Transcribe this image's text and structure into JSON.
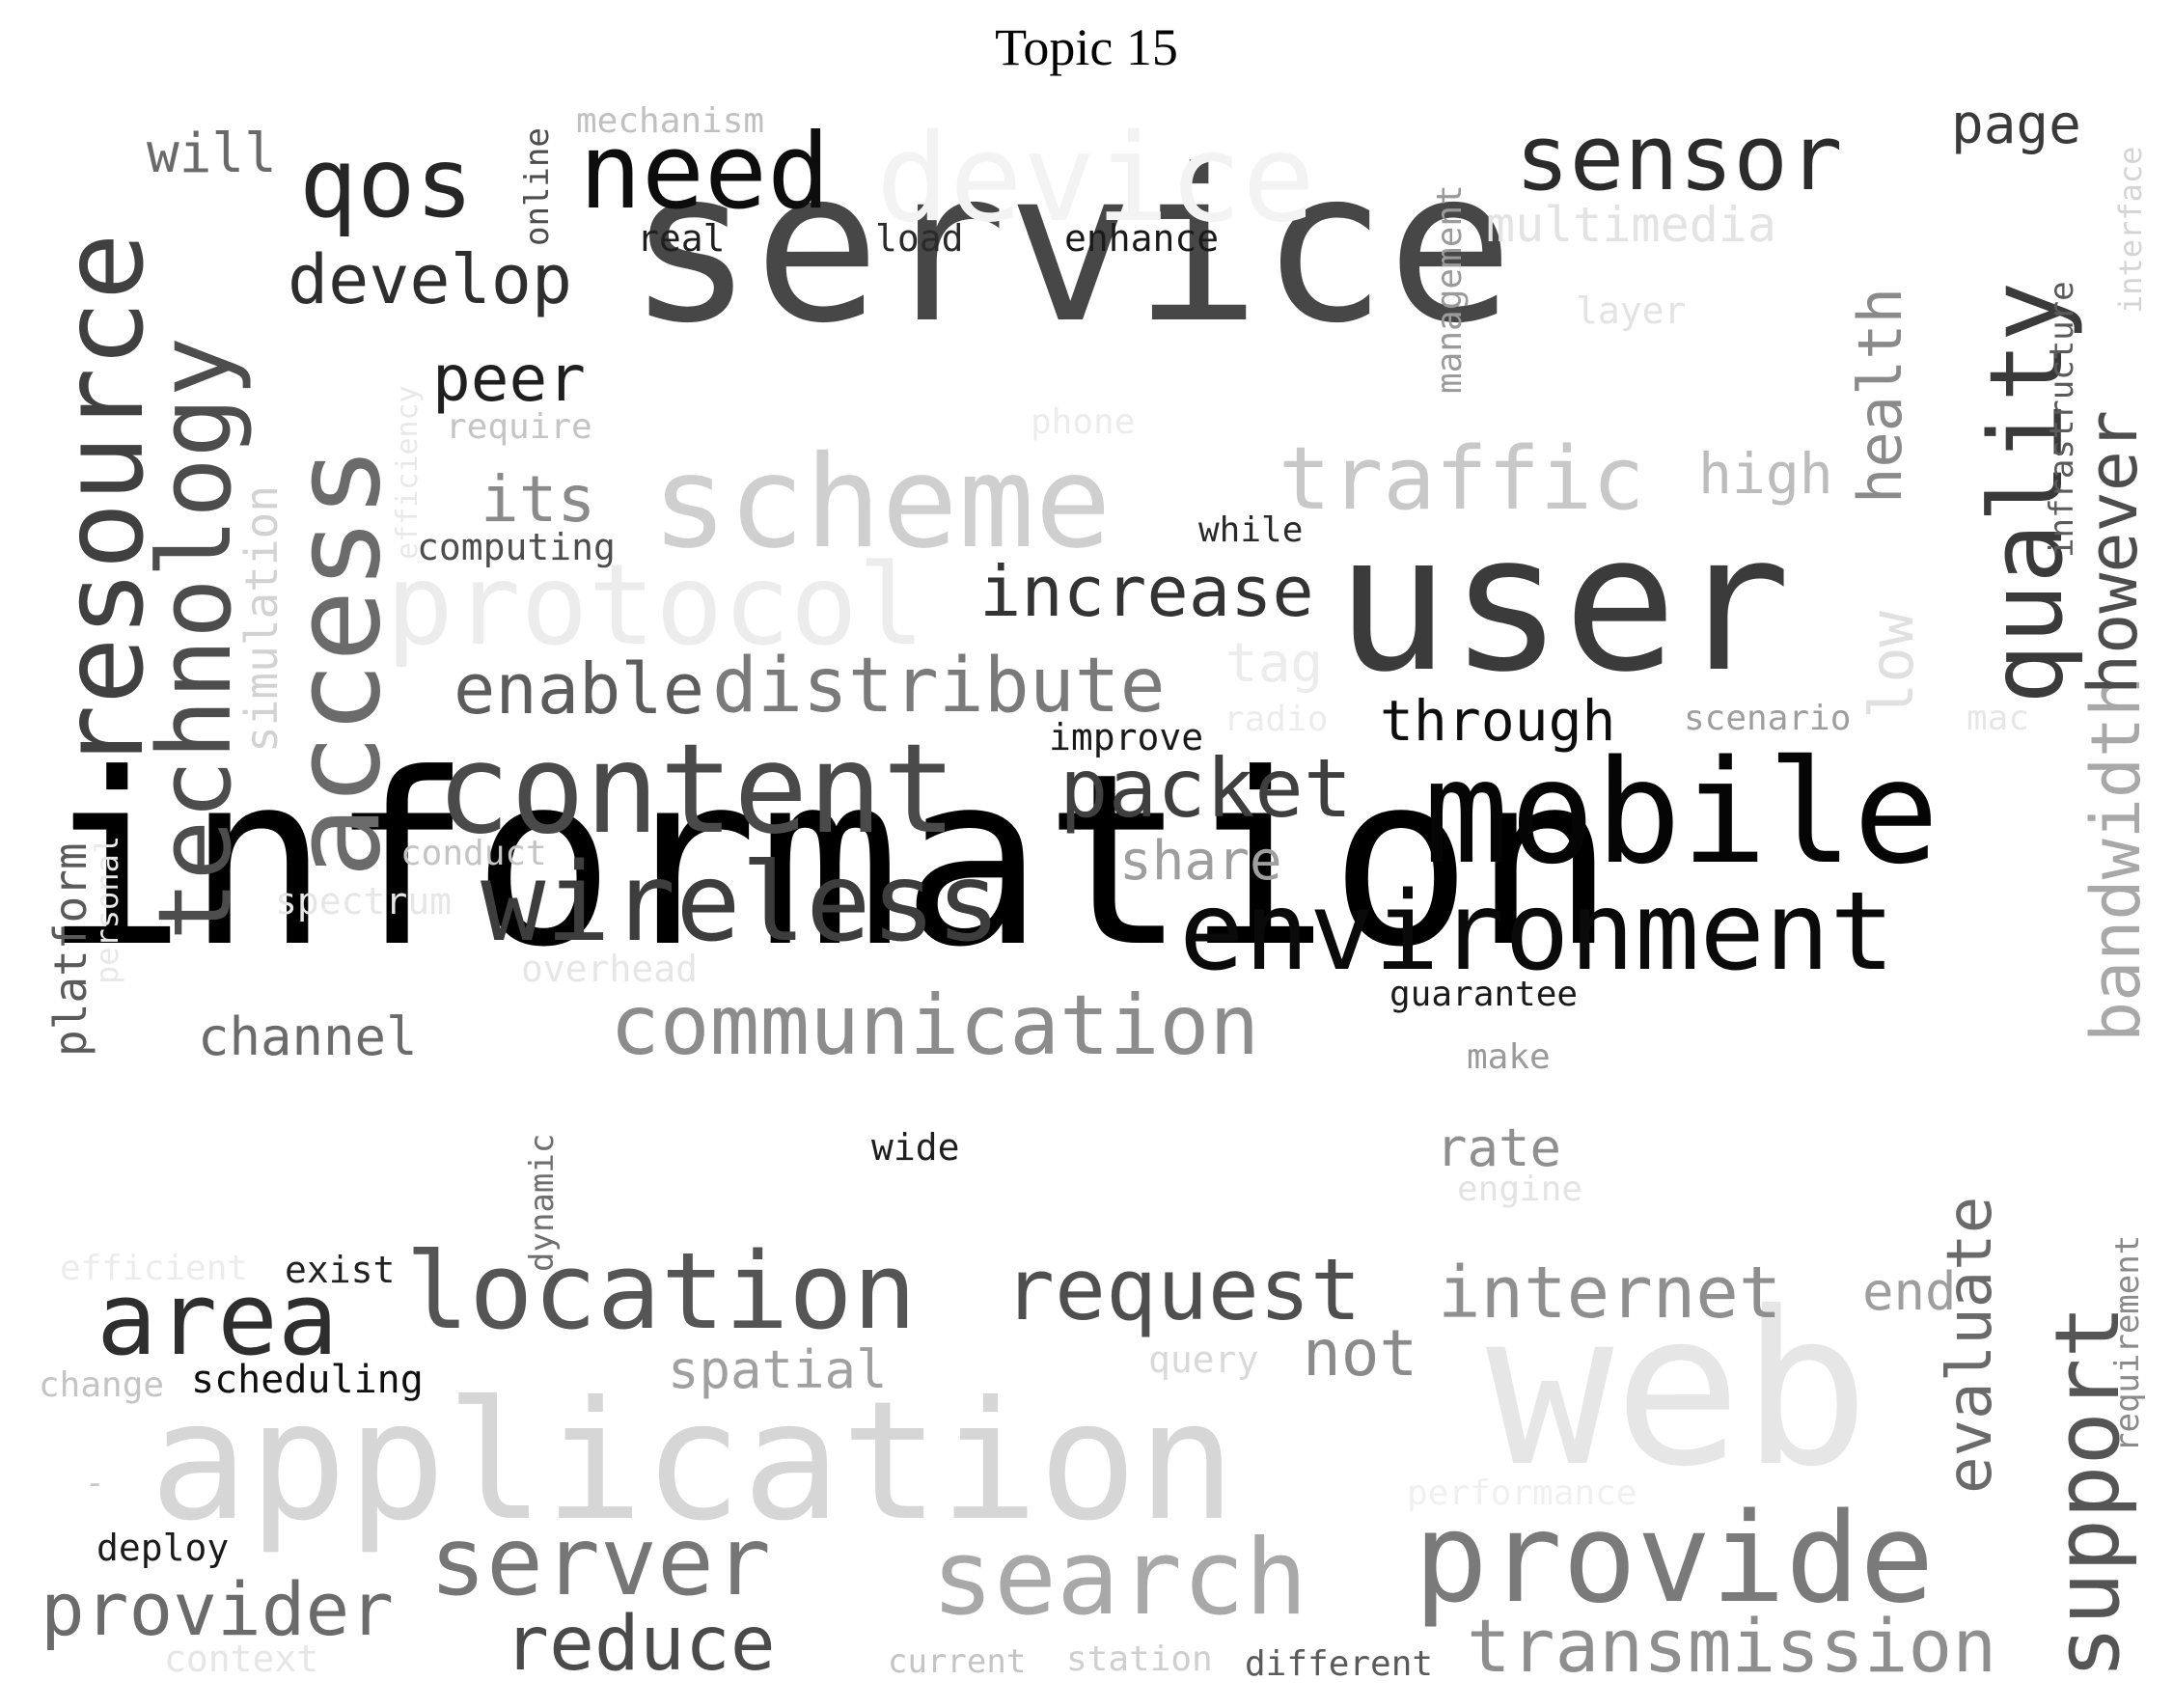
{
  "title": "Topic 15",
  "words": [
    {
      "text": "information",
      "color": "#000000"
    },
    {
      "text": "service",
      "color": "#474747"
    },
    {
      "text": "user",
      "color": "#3b3b3b"
    },
    {
      "text": "application",
      "color": "#d6d6d6"
    },
    {
      "text": "web",
      "color": "#e6e6e6"
    },
    {
      "text": "mobile",
      "color": "#050505"
    },
    {
      "text": "content",
      "color": "#4a4a4a"
    },
    {
      "text": "access",
      "color": "#6b6b6b"
    },
    {
      "text": "resource",
      "color": "#404040"
    },
    {
      "text": "technology",
      "color": "#4d4d4d"
    },
    {
      "text": "scheme",
      "color": "#cfcfcf"
    },
    {
      "text": "protocol",
      "color": "#ececec"
    },
    {
      "text": "device",
      "color": "#f3f3f3"
    },
    {
      "text": "environment",
      "color": "#0a0a0a"
    },
    {
      "text": "wireless",
      "color": "#3d3d3d"
    },
    {
      "text": "location",
      "color": "#555555"
    },
    {
      "text": "area",
      "color": "#2e2e2e"
    },
    {
      "text": "search",
      "color": "#a8a8a8"
    },
    {
      "text": "provide",
      "color": "#7a7a7a"
    },
    {
      "text": "need",
      "color": "#0d0d0d"
    },
    {
      "text": "qos",
      "color": "#262626"
    },
    {
      "text": "sensor",
      "color": "#2b2b2b"
    },
    {
      "text": "quality",
      "color": "#3a3a3a"
    },
    {
      "text": "communication",
      "color": "#8c8c8c"
    },
    {
      "text": "packet",
      "color": "#3f3f3f"
    },
    {
      "text": "distribute",
      "color": "#7a7a7a"
    },
    {
      "text": "enable",
      "color": "#5c5c5c"
    },
    {
      "text": "request",
      "color": "#4f4f4f"
    },
    {
      "text": "server",
      "color": "#767676"
    },
    {
      "text": "provider",
      "color": "#6b6b6b"
    },
    {
      "text": "transmission",
      "color": "#8e8e8e"
    },
    {
      "text": "support",
      "color": "#555555"
    },
    {
      "text": "traffic",
      "color": "#c8c8c8"
    },
    {
      "text": "increase",
      "color": "#333333"
    },
    {
      "text": "bandwidth",
      "color": "#a8a8a8"
    },
    {
      "text": "however",
      "color": "#4d4d4d"
    },
    {
      "text": "internet",
      "color": "#8f8f8f"
    },
    {
      "text": "reduce",
      "color": "#4a4a4a"
    },
    {
      "text": "develop",
      "color": "#2e2e2e"
    },
    {
      "text": "evaluate",
      "color": "#6a6a6a"
    },
    {
      "text": "health",
      "color": "#8a8a8a"
    },
    {
      "text": "peer",
      "color": "#1f1f1f"
    },
    {
      "text": "its",
      "color": "#8a8a8a"
    },
    {
      "text": "multimedia",
      "color": "#e3e3e3"
    },
    {
      "text": "page",
      "color": "#3a3a3a"
    },
    {
      "text": "will",
      "color": "#6a6a6a"
    },
    {
      "text": "through",
      "color": "#0d0d0d"
    },
    {
      "text": "channel",
      "color": "#6b6b6b"
    },
    {
      "text": "spatial",
      "color": "#a0a0a0"
    },
    {
      "text": "not",
      "color": "#8a8a8a"
    },
    {
      "text": "high",
      "color": "#bcbcbc"
    },
    {
      "text": "share",
      "color": "#9e9e9e"
    },
    {
      "text": "rate",
      "color": "#8f8f8f"
    },
    {
      "text": "low",
      "color": "#e0e0e0"
    },
    {
      "text": "end",
      "color": "#9e9e9e"
    },
    {
      "text": "platform",
      "color": "#5a5a5a"
    },
    {
      "text": "simulation",
      "color": "#d2d2d2"
    },
    {
      "text": "management",
      "color": "#9a9a9a"
    },
    {
      "text": "infrastructure",
      "color": "#5a5a5a"
    },
    {
      "text": "interface",
      "color": "#d4d4d4"
    },
    {
      "text": "requirement",
      "color": "#8a8a8a"
    },
    {
      "text": "scheduling",
      "color": "#0f0f0f"
    },
    {
      "text": "deploy",
      "color": "#1a1a1a"
    },
    {
      "text": "exist",
      "color": "#222222"
    },
    {
      "text": "wide",
      "color": "#1f1f1f"
    },
    {
      "text": "enhance",
      "color": "#1a1a1a"
    },
    {
      "text": "load",
      "color": "#2a2a2a"
    },
    {
      "text": "real",
      "color": "#1f1f1f"
    },
    {
      "text": "improve",
      "color": "#1a1a1a"
    },
    {
      "text": "guarantee",
      "color": "#1a1a1a"
    },
    {
      "text": "while",
      "color": "#2a2a2a"
    },
    {
      "text": "computing",
      "color": "#4d4d4d"
    },
    {
      "text": "online",
      "color": "#4d4d4d"
    },
    {
      "text": "dynamic",
      "color": "#6f6f6f"
    },
    {
      "text": "mechanism",
      "color": "#c0c0c0"
    },
    {
      "text": "require",
      "color": "#c4c4c4"
    },
    {
      "text": "efficiency",
      "color": "#e8e8e8"
    },
    {
      "text": "conduct",
      "color": "#c4c4c4"
    },
    {
      "text": "spectrum",
      "color": "#e6e6e6"
    },
    {
      "text": "personal",
      "color": "#e8e8e8"
    },
    {
      "text": "overhead",
      "color": "#e6e6e6"
    },
    {
      "text": "phone",
      "color": "#ececec"
    },
    {
      "text": "layer",
      "color": "#e3e3e3"
    },
    {
      "text": "tag",
      "color": "#ececec"
    },
    {
      "text": "radio",
      "color": "#ececec"
    },
    {
      "text": "scenario",
      "color": "#9e9e9e"
    },
    {
      "text": "mac",
      "color": "#e6e6e6"
    },
    {
      "text": "make",
      "color": "#9a9a9a"
    },
    {
      "text": "engine",
      "color": "#e3e3e3"
    },
    {
      "text": "query",
      "color": "#d9d9d9"
    },
    {
      "text": "performance",
      "color": "#f0f0f0"
    },
    {
      "text": "efficient",
      "color": "#ececec"
    },
    {
      "text": "change",
      "color": "#c4c4c4"
    },
    {
      "text": "context",
      "color": "#e6e6e6"
    },
    {
      "text": "current",
      "color": "#c4c4c4"
    },
    {
      "text": "station",
      "color": "#cfcfcf"
    },
    {
      "text": "different",
      "color": "#5a5a5a"
    },
    {
      "text": "-",
      "color": "#c8c8c8"
    }
  ]
}
